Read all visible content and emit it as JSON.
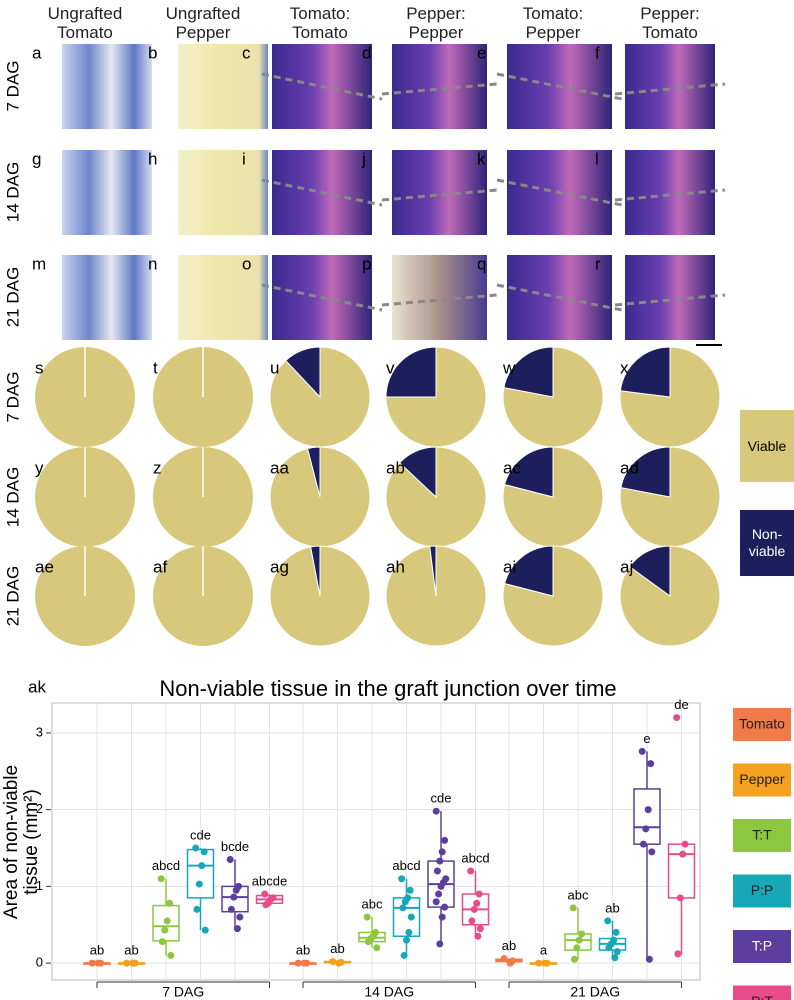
{
  "figure": {
    "columns": [
      "Ungrafted Tomato",
      "Ungrafted Pepper",
      "Tomato: Tomato",
      "Pepper: Pepper",
      "Tomato: Pepper",
      "Pepper: Tomato"
    ],
    "rows": [
      "7 DAG",
      "14 DAG",
      "21 DAG"
    ],
    "photo_panels": [
      "a",
      "b",
      "c",
      "d",
      "e",
      "f",
      "g",
      "h",
      "i",
      "j",
      "k",
      "l",
      "m",
      "n",
      "o",
      "p",
      "q",
      "r"
    ],
    "legend": [
      {
        "name": "Viable",
        "color": "#d8c87b"
      },
      {
        "name": "Non-viable",
        "color": "#1c1f5c"
      }
    ]
  },
  "chart_data": [
    {
      "type": "pie",
      "panel": "s",
      "values": [
        100,
        0
      ]
    },
    {
      "type": "pie",
      "panel": "t",
      "values": [
        100,
        0
      ]
    },
    {
      "type": "pie",
      "panel": "u",
      "values": [
        88,
        12
      ]
    },
    {
      "type": "pie",
      "panel": "v",
      "values": [
        75,
        25
      ]
    },
    {
      "type": "pie",
      "panel": "w",
      "values": [
        78,
        22
      ]
    },
    {
      "type": "pie",
      "panel": "x",
      "values": [
        77,
        23
      ]
    },
    {
      "type": "pie",
      "panel": "y",
      "values": [
        100,
        0
      ]
    },
    {
      "type": "pie",
      "panel": "z",
      "values": [
        100,
        0
      ]
    },
    {
      "type": "pie",
      "panel": "aa",
      "values": [
        96,
        4
      ]
    },
    {
      "type": "pie",
      "panel": "ab",
      "values": [
        87,
        13
      ]
    },
    {
      "type": "pie",
      "panel": "ac",
      "values": [
        79,
        21
      ]
    },
    {
      "type": "pie",
      "panel": "ad",
      "values": [
        78,
        22
      ]
    },
    {
      "type": "pie",
      "panel": "ae",
      "values": [
        100,
        0
      ]
    },
    {
      "type": "pie",
      "panel": "af",
      "values": [
        100,
        0
      ]
    },
    {
      "type": "pie",
      "panel": "ag",
      "values": [
        97,
        3
      ]
    },
    {
      "type": "pie",
      "panel": "ah",
      "values": [
        98,
        2
      ]
    },
    {
      "type": "pie",
      "panel": "ai",
      "values": [
        79,
        21
      ]
    },
    {
      "type": "pie",
      "panel": "aj",
      "values": [
        85,
        15
      ]
    },
    {
      "type": "box",
      "panel": "ak",
      "title": "Non-viable tissue in the graft junction over time",
      "ylabel": [
        "Area of non-viable",
        "tissue (mm²)"
      ],
      "categories": [
        "7 DAG",
        "14 DAG",
        "21 DAG"
      ],
      "ylim": [
        -0.22,
        3.39
      ],
      "yticks": [
        0,
        1,
        2,
        3
      ],
      "grid": true,
      "series": [
        {
          "name": "Tomato",
          "color": "#f07a4a",
          "boxes": [
            {
              "min": 0,
              "q1": 0,
              "median": 0,
              "q3": 0,
              "max": 0,
              "points": [
                0,
                0,
                0
              ],
              "label": "ab"
            },
            {
              "min": 0,
              "q1": 0,
              "median": 0,
              "q3": 0,
              "max": 0,
              "points": [
                0,
                0,
                0
              ],
              "label": "ab"
            },
            {
              "min": 0,
              "q1": 0.02,
              "median": 0.03,
              "q3": 0.05,
              "max": 0.06,
              "points": [
                0.06,
                0.03,
                0
              ],
              "label": "ab"
            }
          ]
        },
        {
          "name": "Pepper",
          "color": "#f5a01e",
          "boxes": [
            {
              "min": 0,
              "q1": 0,
              "median": 0,
              "q3": 0,
              "max": 0,
              "points": [
                0,
                0,
                0
              ],
              "label": "ab"
            },
            {
              "min": 0,
              "q1": 0.01,
              "median": 0.01,
              "q3": 0.02,
              "max": 0.02,
              "points": [
                0.02,
                0.01,
                0
              ],
              "label": "ab"
            },
            {
              "min": 0,
              "q1": 0,
              "median": 0,
              "q3": 0,
              "max": 0,
              "points": [
                0,
                0,
                0
              ],
              "label": "a"
            }
          ]
        },
        {
          "name": "T:T",
          "color": "#8dc63f",
          "boxes": [
            {
              "min": 0.1,
              "q1": 0.29,
              "median": 0.48,
              "q3": 0.75,
              "max": 1.1,
              "points": [
                1.1,
                0.78,
                0.55,
                0.43,
                0.28,
                0.1
              ],
              "label": "abcd"
            },
            {
              "min": 0.2,
              "q1": 0.28,
              "median": 0.33,
              "q3": 0.4,
              "max": 0.6,
              "points": [
                0.6,
                0.4,
                0.35,
                0.32,
                0.28,
                0.2
              ],
              "label": "abc"
            },
            {
              "min": 0.05,
              "q1": 0.17,
              "median": 0.3,
              "q3": 0.38,
              "max": 0.72,
              "points": [
                0.72,
                0.38,
                0.3,
                0.2,
                0.05
              ],
              "label": "abc"
            }
          ]
        },
        {
          "name": "P:P",
          "color": "#17a8b8",
          "boxes": [
            {
              "min": 0.43,
              "q1": 0.85,
              "median": 1.27,
              "q3": 1.48,
              "max": 1.5,
              "points": [
                1.5,
                1.45,
                1.27,
                1.03,
                0.7,
                0.43
              ],
              "label": "cde"
            },
            {
              "min": 0.1,
              "q1": 0.35,
              "median": 0.72,
              "q3": 0.85,
              "max": 1.1,
              "points": [
                1.1,
                0.95,
                0.85,
                0.8,
                0.72,
                0.6,
                0.4,
                0.3,
                0.1
              ],
              "label": "abcd"
            },
            {
              "min": 0.07,
              "q1": 0.17,
              "median": 0.25,
              "q3": 0.32,
              "max": 0.55,
              "points": [
                0.55,
                0.4,
                0.3,
                0.25,
                0.2,
                0.15,
                0.07
              ],
              "label": "ab"
            }
          ]
        },
        {
          "name": "T:P",
          "color": "#5b3e9e",
          "boxes": [
            {
              "min": 0.45,
              "q1": 0.67,
              "median": 0.86,
              "q3": 1.0,
              "max": 1.35,
              "points": [
                1.35,
                1.0,
                0.95,
                0.86,
                0.7,
                0.6,
                0.45
              ],
              "label": "bcde"
            },
            {
              "min": 0.25,
              "q1": 0.73,
              "median": 1.03,
              "q3": 1.33,
              "max": 1.98,
              "points": [
                1.98,
                1.6,
                1.45,
                1.33,
                1.2,
                1.1,
                1.05,
                1.0,
                0.9,
                0.8,
                0.73,
                0.6,
                0.25
              ],
              "label": "cde"
            },
            {
              "min": 0.05,
              "q1": 1.55,
              "median": 1.77,
              "q3": 2.27,
              "max": 2.76,
              "points": [
                2.76,
                2.6,
                2.0,
                1.75,
                1.55,
                1.45,
                0.05
              ],
              "label": "e"
            }
          ]
        },
        {
          "name": "P:T",
          "color": "#e84a8a",
          "boxes": [
            {
              "min": 0.75,
              "q1": 0.78,
              "median": 0.83,
              "q3": 0.88,
              "max": 0.9,
              "points": [
                0.9,
                0.85,
                0.83,
                0.78,
                0.76
              ],
              "label": "abcde"
            },
            {
              "min": 0.35,
              "q1": 0.5,
              "median": 0.7,
              "q3": 0.9,
              "max": 1.2,
              "points": [
                1.2,
                0.9,
                0.78,
                0.7,
                0.55,
                0.45,
                0.35
              ],
              "label": "abcd"
            },
            {
              "min": 0.12,
              "q1": 0.85,
              "median": 1.42,
              "q3": 1.55,
              "max": 1.55,
              "points": [
                3.2,
                1.55,
                1.42,
                0.85,
                0.12
              ],
              "label": "de"
            }
          ]
        }
      ]
    }
  ]
}
